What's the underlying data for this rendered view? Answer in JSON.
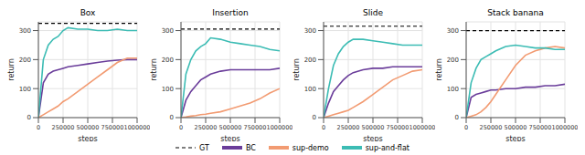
{
  "chart_data": [
    {
      "type": "line",
      "title": "Box",
      "x_label": "steps",
      "y_label": "return",
      "grid": true,
      "legend": "bottom",
      "x": [
        0,
        50000,
        100000,
        150000,
        200000,
        250000,
        300000,
        400000,
        500000,
        600000,
        700000,
        800000,
        900000,
        1000000
      ],
      "xlim": [
        0,
        1000000
      ],
      "xticks": [
        0,
        250000,
        500000,
        750000,
        1000000
      ],
      "ylim": [
        0,
        330
      ],
      "yticks": [
        0,
        100,
        200,
        300
      ],
      "series": [
        {
          "name": "GT",
          "color": "#000000",
          "line_style": "dashed",
          "values": [
            325,
            325,
            325,
            325,
            325,
            325,
            325,
            325,
            325,
            325,
            325,
            325,
            325,
            325
          ]
        },
        {
          "name": "BC",
          "color": "#6a3d9a",
          "line_style": "solid",
          "values": [
            0,
            120,
            150,
            160,
            165,
            170,
            175,
            180,
            185,
            190,
            195,
            198,
            200,
            200
          ]
        },
        {
          "name": "sup-demo",
          "color": "#f29b72",
          "line_style": "solid",
          "values": [
            0,
            10,
            20,
            30,
            40,
            55,
            65,
            90,
            115,
            140,
            165,
            190,
            205,
            205
          ]
        },
        {
          "name": "sup-and-flat",
          "color": "#3cbcb4",
          "line_style": "solid",
          "values": [
            0,
            200,
            250,
            270,
            280,
            300,
            310,
            305,
            305,
            300,
            300,
            305,
            300,
            300
          ]
        }
      ]
    },
    {
      "type": "line",
      "title": "Insertion",
      "x_label": "steps",
      "y_label": "return",
      "grid": true,
      "legend": "bottom",
      "x": [
        0,
        50000,
        100000,
        150000,
        200000,
        250000,
        300000,
        400000,
        500000,
        600000,
        700000,
        800000,
        900000,
        1000000
      ],
      "xlim": [
        0,
        1000000
      ],
      "xticks": [
        0,
        250000,
        500000,
        750000,
        1000000
      ],
      "ylim": [
        0,
        330
      ],
      "yticks": [
        0,
        100,
        200,
        300
      ],
      "series": [
        {
          "name": "GT",
          "color": "#000000",
          "line_style": "dashed",
          "values": [
            305,
            305,
            305,
            305,
            305,
            305,
            305,
            305,
            305,
            305,
            305,
            305,
            305,
            305
          ]
        },
        {
          "name": "BC",
          "color": "#6a3d9a",
          "line_style": "solid",
          "values": [
            0,
            60,
            90,
            110,
            130,
            140,
            150,
            160,
            165,
            165,
            165,
            165,
            165,
            170
          ]
        },
        {
          "name": "sup-demo",
          "color": "#f29b72",
          "line_style": "solid",
          "values": [
            0,
            2,
            5,
            7,
            10,
            12,
            15,
            20,
            30,
            40,
            50,
            65,
            85,
            100
          ]
        },
        {
          "name": "sup-and-flat",
          "color": "#3cbcb4",
          "line_style": "solid",
          "values": [
            0,
            150,
            200,
            230,
            245,
            255,
            275,
            270,
            260,
            255,
            250,
            245,
            235,
            230
          ]
        }
      ]
    },
    {
      "type": "line",
      "title": "Slide",
      "x_label": "steps",
      "y_label": "return",
      "grid": true,
      "legend": "bottom",
      "x": [
        0,
        50000,
        100000,
        150000,
        200000,
        250000,
        300000,
        400000,
        500000,
        600000,
        700000,
        800000,
        900000,
        1000000
      ],
      "xlim": [
        0,
        1000000
      ],
      "xticks": [
        0,
        250000,
        500000,
        750000,
        1000000
      ],
      "ylim": [
        0,
        330
      ],
      "yticks": [
        0,
        100,
        200,
        300
      ],
      "series": [
        {
          "name": "GT",
          "color": "#000000",
          "line_style": "dashed",
          "values": [
            315,
            315,
            315,
            315,
            315,
            315,
            315,
            315,
            315,
            315,
            315,
            315,
            315,
            315
          ]
        },
        {
          "name": "BC",
          "color": "#6a3d9a",
          "line_style": "solid",
          "values": [
            0,
            50,
            90,
            110,
            130,
            145,
            155,
            165,
            170,
            170,
            175,
            175,
            175,
            175
          ]
        },
        {
          "name": "sup-demo",
          "color": "#f29b72",
          "line_style": "solid",
          "values": [
            0,
            5,
            10,
            15,
            20,
            25,
            35,
            55,
            80,
            105,
            130,
            145,
            160,
            165
          ]
        },
        {
          "name": "sup-and-flat",
          "color": "#3cbcb4",
          "line_style": "solid",
          "values": [
            0,
            100,
            180,
            220,
            245,
            260,
            270,
            270,
            265,
            260,
            255,
            250,
            250,
            250
          ]
        }
      ]
    },
    {
      "type": "line",
      "title": "Stack banana",
      "x_label": "steps",
      "y_label": "return",
      "grid": true,
      "legend": "bottom",
      "x": [
        0,
        50000,
        100000,
        150000,
        200000,
        250000,
        300000,
        400000,
        500000,
        600000,
        700000,
        800000,
        900000,
        1000000
      ],
      "xlim": [
        0,
        1000000
      ],
      "xticks": [
        0,
        250000,
        500000,
        750000,
        1000000
      ],
      "ylim": [
        0,
        330
      ],
      "yticks": [
        0,
        100,
        200,
        300
      ],
      "series": [
        {
          "name": "GT",
          "color": "#000000",
          "line_style": "dashed",
          "values": [
            300,
            300,
            300,
            300,
            300,
            300,
            300,
            300,
            300,
            300,
            300,
            300,
            300,
            300
          ]
        },
        {
          "name": "BC",
          "color": "#6a3d9a",
          "line_style": "solid",
          "values": [
            0,
            70,
            80,
            85,
            90,
            95,
            95,
            100,
            100,
            105,
            105,
            110,
            110,
            115
          ]
        },
        {
          "name": "sup-demo",
          "color": "#f29b72",
          "line_style": "solid",
          "values": [
            0,
            5,
            10,
            20,
            35,
            55,
            80,
            130,
            180,
            215,
            230,
            240,
            245,
            240
          ]
        },
        {
          "name": "sup-and-flat",
          "color": "#3cbcb4",
          "line_style": "solid",
          "values": [
            0,
            120,
            170,
            200,
            210,
            220,
            230,
            245,
            250,
            245,
            240,
            240,
            235,
            235
          ]
        }
      ]
    }
  ]
}
